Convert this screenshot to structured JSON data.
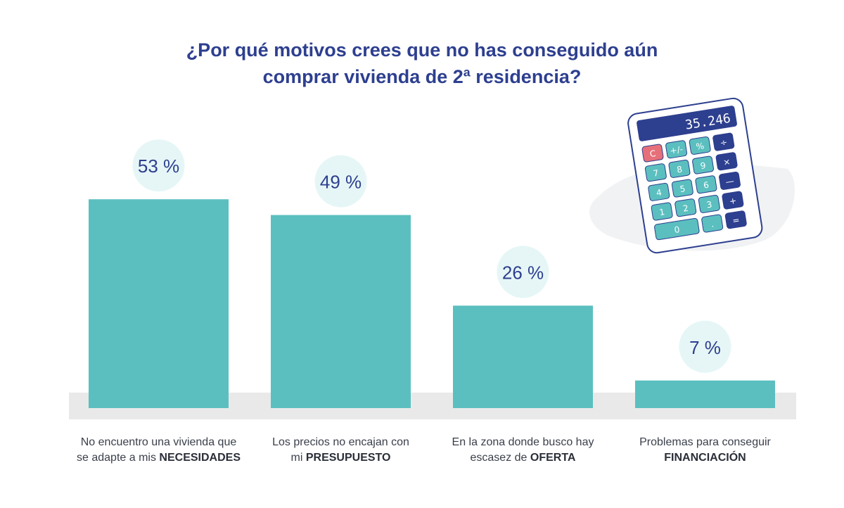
{
  "title_lines": [
    "¿Por qué motivos crees que no has conseguido aún",
    "comprar vivienda de 2ª residencia?"
  ],
  "calculator": {
    "display": "35.246",
    "keys": [
      "C",
      "+/-",
      "%",
      "÷",
      "7",
      "8",
      "9",
      "×",
      "4",
      "5",
      "6",
      "—",
      "1",
      "2",
      "3",
      "+",
      "0",
      ".",
      "="
    ]
  },
  "colors": {
    "bar": "#5bbfbf",
    "bubble": "#e6f6f6",
    "label_value": "#2d3f8f",
    "floor": "#e9e9e9",
    "title": "#2d3f8f"
  },
  "chart_data": {
    "type": "bar",
    "categories": [
      "No encuentro una vivienda que se adapte a mis NECESIDADES",
      "Los precios no encajan con mi PRESUPUESTO",
      "En la zona donde busco hay escasez de OFERTA",
      "Problemas para conseguir FINANCIACIÓN"
    ],
    "category_lines": [
      [
        {
          "text": "No encuentro una vivienda que"
        },
        {
          "text": "se adapte a mis ",
          "bold": "NECESIDADES"
        }
      ],
      [
        {
          "text": "Los precios no encajan con"
        },
        {
          "text": "mi ",
          "bold": "PRESUPUESTO"
        }
      ],
      [
        {
          "text": "En la zona donde busco hay"
        },
        {
          "text": "escasez de ",
          "bold": "OFERTA"
        }
      ],
      [
        {
          "text": "Problemas para conseguir"
        },
        {
          "text": "",
          "bold": "FINANCIACIÓN"
        }
      ]
    ],
    "values": [
      53,
      49,
      26,
      7
    ],
    "value_labels": [
      "53 %",
      "49 %",
      "26 %",
      "7 %"
    ],
    "unit": "%",
    "grid": false,
    "legend": "none"
  }
}
